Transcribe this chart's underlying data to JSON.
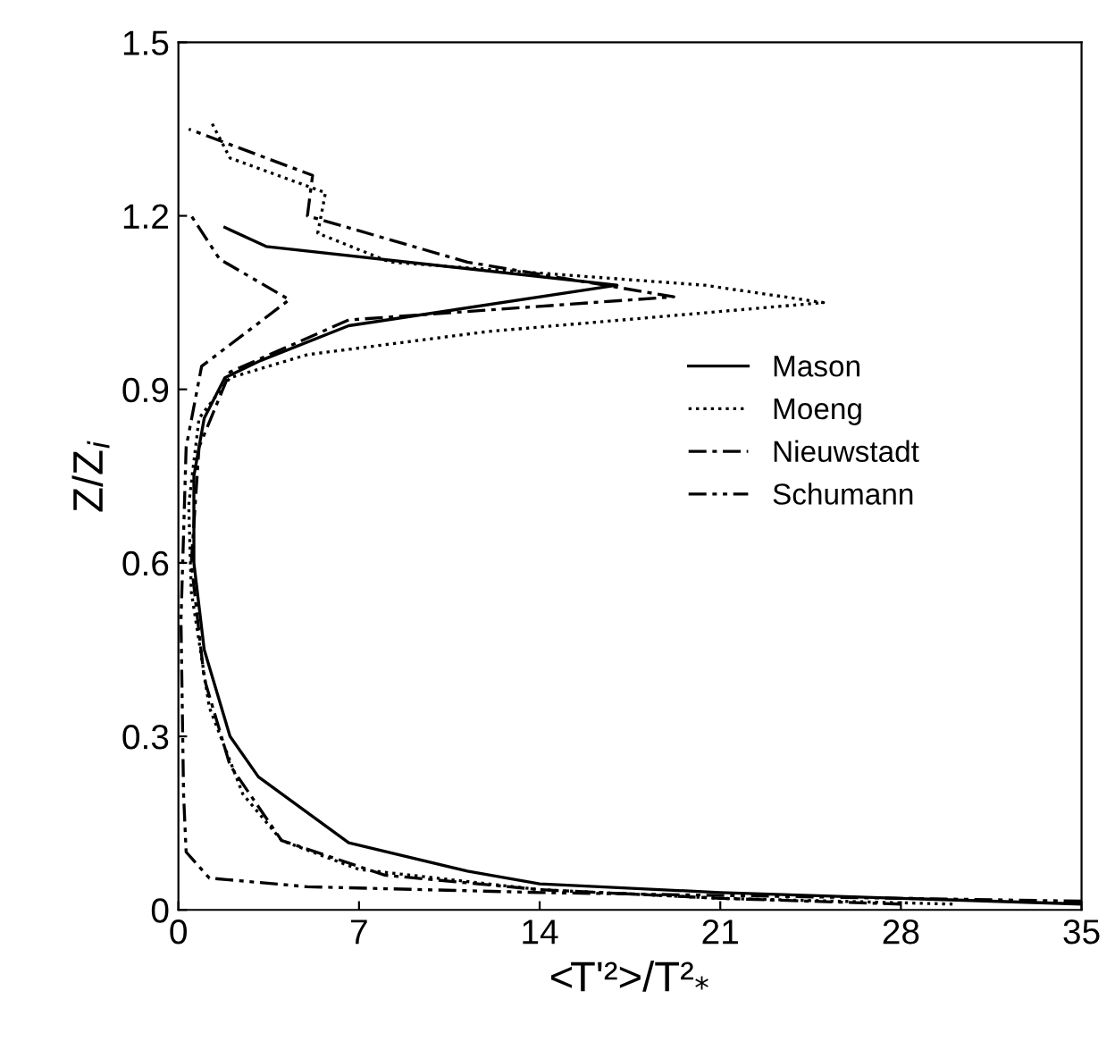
{
  "chart_data": {
    "type": "line",
    "xlabel": "<T'²>/T²$_{*}$",
    "ylabel": "Z/Z$_{i}$",
    "xlim": [
      0,
      35
    ],
    "ylim": [
      0,
      1.5
    ],
    "xticks": [
      0,
      7,
      14,
      21,
      28,
      35
    ],
    "yticks": [
      0,
      0.3,
      0.6,
      0.9,
      1.2,
      1.5
    ],
    "grid": false,
    "legend": "right",
    "marker": "none",
    "series": [
      {
        "name": "Mason",
        "color": "#000000",
        "line_style": "solid",
        "x": [
          35,
          28,
          21,
          14,
          11.2,
          6.6,
          3.1,
          2,
          1,
          0.6,
          0.6,
          1,
          1.8,
          3.2,
          6.6,
          17,
          3.4,
          1.8
        ],
        "values": [
          0.01,
          0.02,
          0.03,
          0.045,
          0.067,
          0.116,
          0.23,
          0.3,
          0.45,
          0.6,
          0.75,
          0.85,
          0.92,
          0.95,
          1.01,
          1.08,
          1.147,
          1.18
        ]
      },
      {
        "name": "Moeng",
        "color": "#000000",
        "line_style": "dotted",
        "x": [
          30,
          21,
          14,
          7,
          4,
          2.5,
          1.2,
          0.5,
          0.4,
          0.8,
          2,
          5,
          12,
          25,
          20.4,
          8.2,
          5.4,
          5.7,
          2,
          1.3
        ],
        "values": [
          0.01,
          0.02,
          0.035,
          0.07,
          0.12,
          0.2,
          0.35,
          0.55,
          0.7,
          0.85,
          0.92,
          0.96,
          1.0,
          1.05,
          1.08,
          1.12,
          1.17,
          1.24,
          1.3,
          1.36
        ]
      },
      {
        "name": "Nieuwstadt",
        "color": "#000000",
        "line_style": "dashdot",
        "x": [
          28,
          21,
          14,
          8,
          4,
          2,
          1,
          0.5,
          0.8,
          2,
          6.6,
          19.2,
          11.2,
          5,
          5.2,
          0.4
        ],
        "values": [
          0.01,
          0.02,
          0.035,
          0.06,
          0.12,
          0.25,
          0.4,
          0.6,
          0.8,
          0.93,
          1.02,
          1.06,
          1.12,
          1.2,
          1.27,
          1.35
        ]
      },
      {
        "name": "Schumann",
        "color": "#000000",
        "line_style": "dashdotdot",
        "x": [
          35,
          28,
          14,
          5,
          1.2,
          0.3,
          0.2,
          0.1,
          0.3,
          0.9,
          4.3,
          1.6,
          0.5
        ],
        "values": [
          0.015,
          0.02,
          0.03,
          0.04,
          0.055,
          0.1,
          0.2,
          0.5,
          0.8,
          0.94,
          1.055,
          1.125,
          1.2
        ]
      }
    ]
  }
}
